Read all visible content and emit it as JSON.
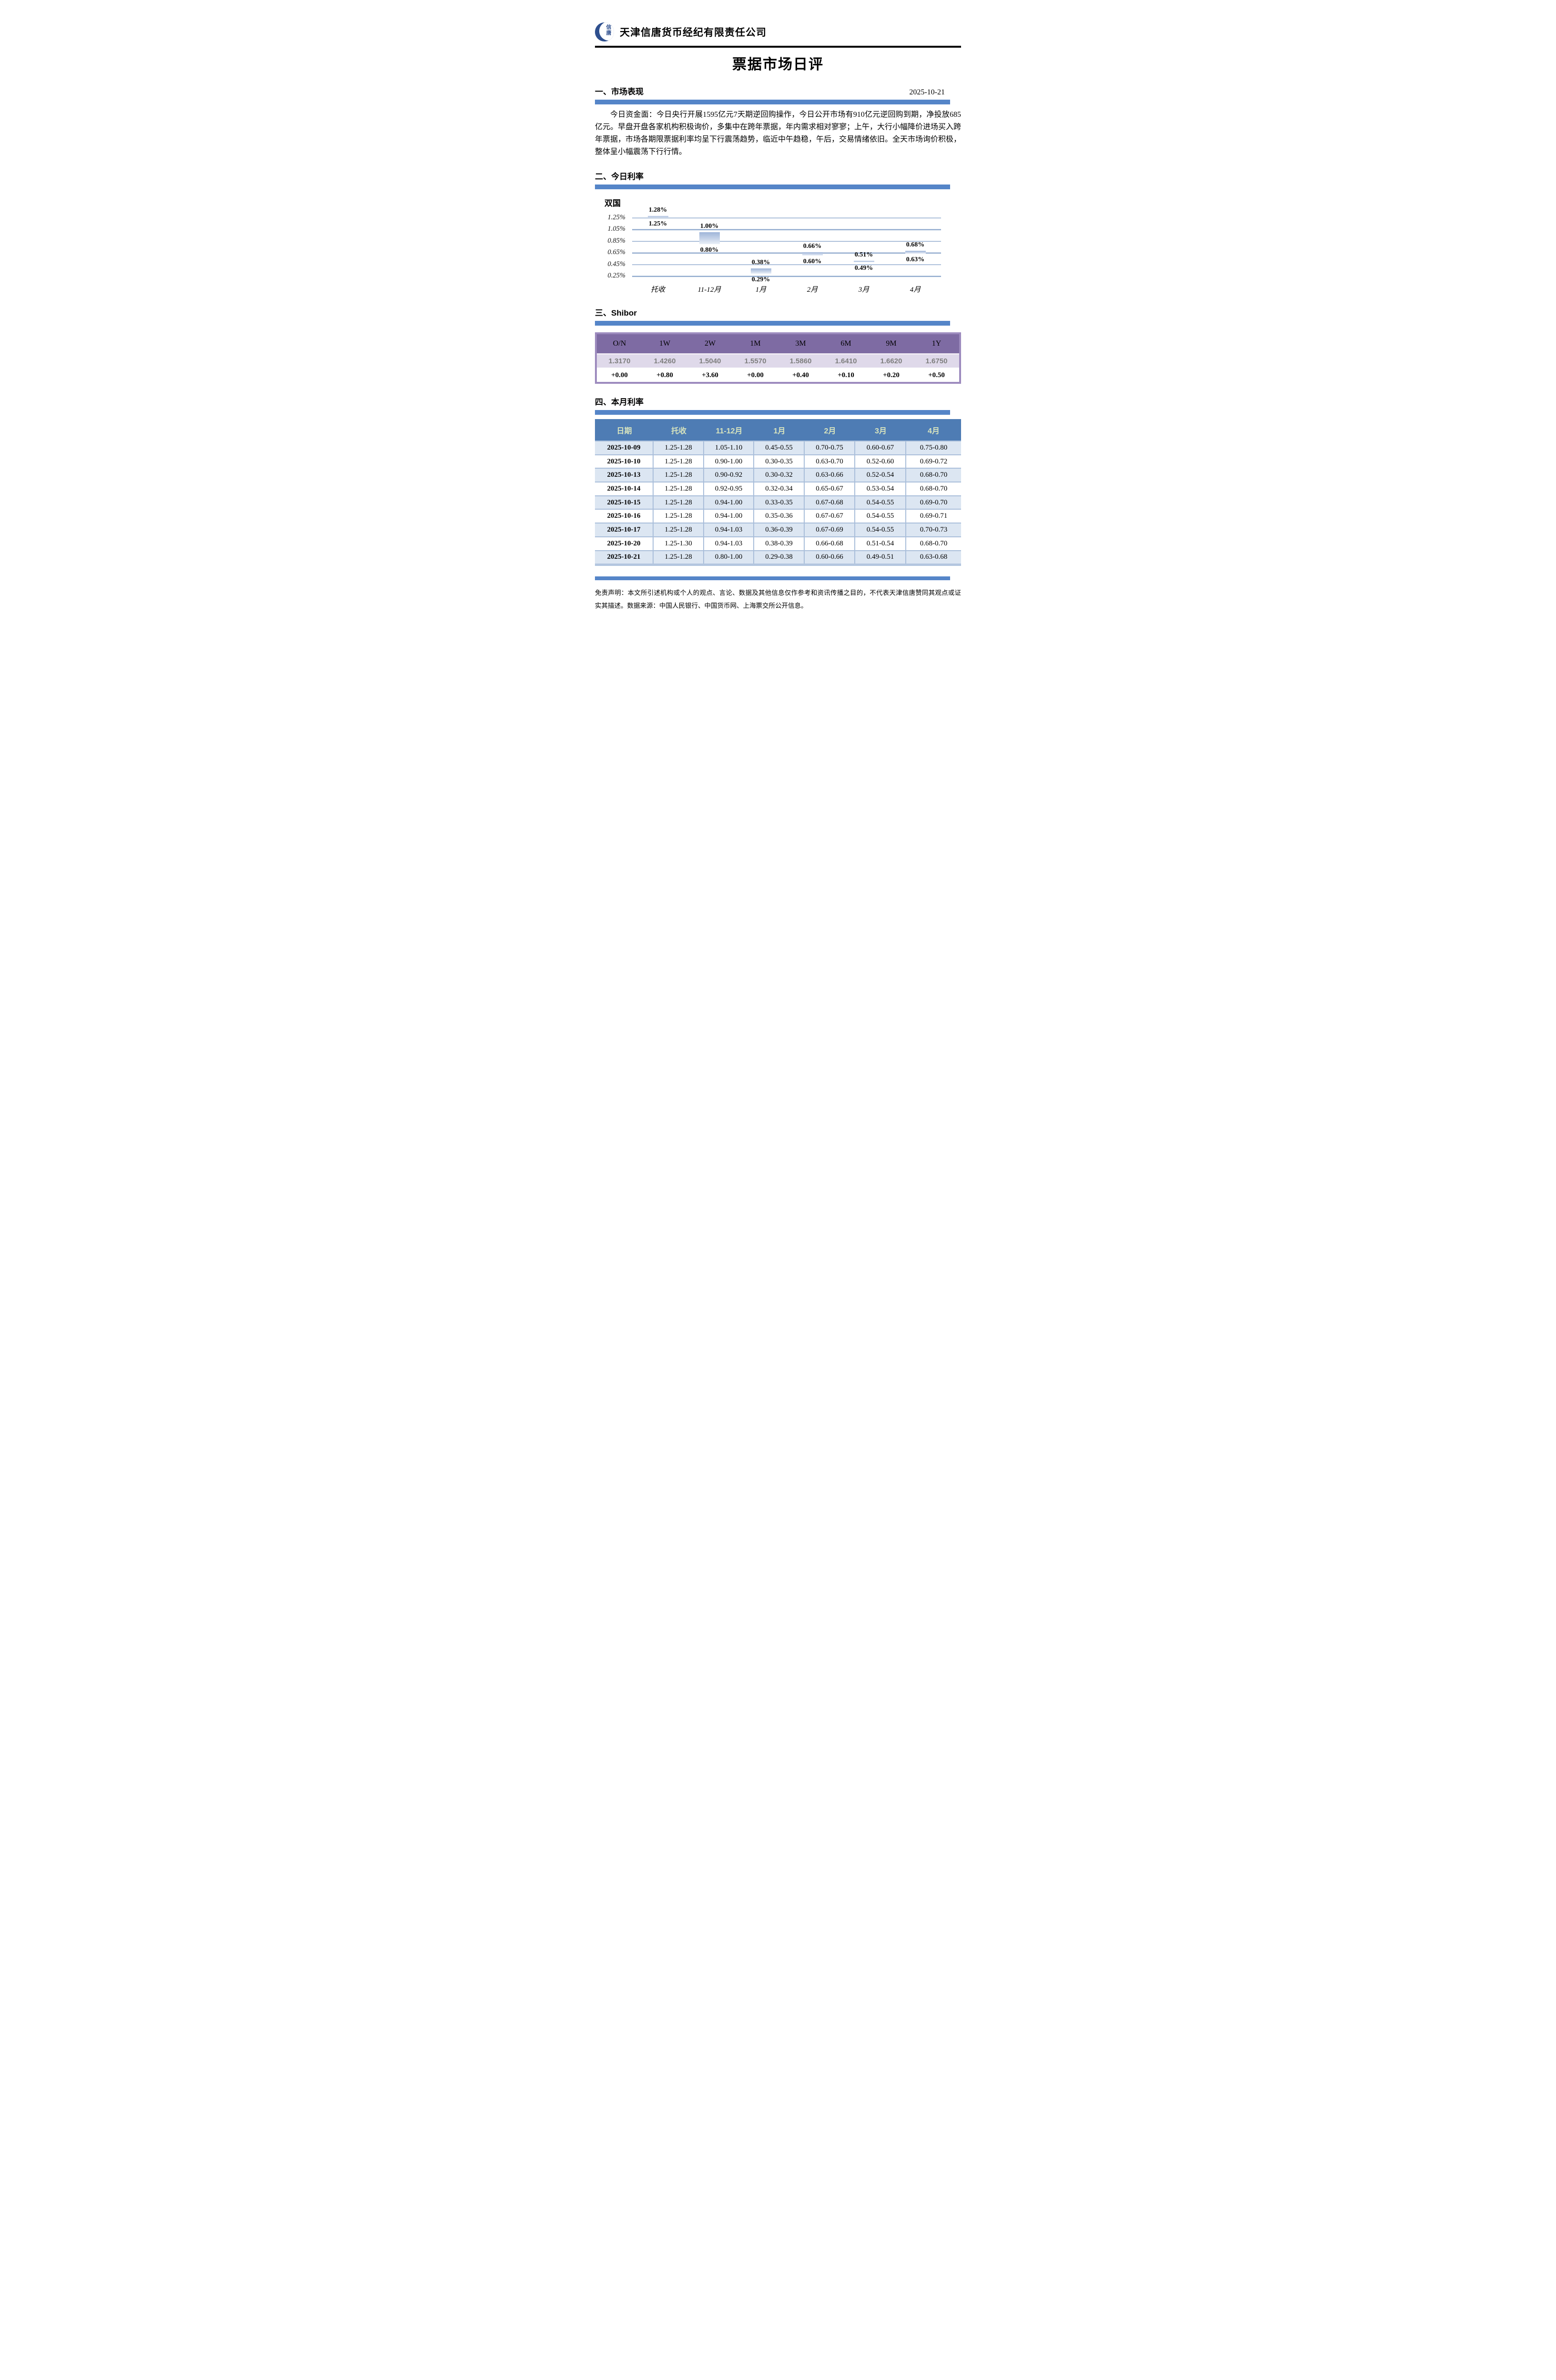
{
  "header": {
    "company": "天津信唐货币经纪有限责任公司",
    "logo_text": "信唐",
    "title": "票据市场日评"
  },
  "sections": {
    "market": {
      "heading": "一、市场表现",
      "date": "2025-10-21",
      "paragraph": "今日资金面：今日央行开展1595亿元7天期逆回购操作，今日公开市场有910亿元逆回购到期，净投放685亿元。早盘开盘各家机构积极询价，多集中在跨年票据，年内需求相对寥寥；上午，大行小幅降价进场买入跨年票据，市场各期限票据利率均呈下行震荡趋势，临近中午趋稳，午后，交易情绪依旧。全天市场询价积极，整体呈小幅震荡下行行情。"
    },
    "today_rates": {
      "heading": "二、今日利率"
    },
    "shibor": {
      "heading": "三、Shibor"
    },
    "monthly": {
      "heading": "四、本月利率"
    }
  },
  "chart_data": {
    "type": "bar",
    "subtype": "floating-range-bars",
    "series_label": "双国",
    "categories": [
      "托收",
      "11-12月",
      "1月",
      "2月",
      "3月",
      "4月"
    ],
    "ranges": [
      [
        1.25,
        1.28
      ],
      [
        0.8,
        1.0
      ],
      [
        0.29,
        0.38
      ],
      [
        0.6,
        0.66
      ],
      [
        0.49,
        0.51
      ],
      [
        0.63,
        0.68
      ]
    ],
    "labels_high": [
      "1.28%",
      "1.00%",
      "0.38%",
      "0.66%",
      "0.51%",
      "0.68%"
    ],
    "labels_low": [
      "1.25%",
      "0.80%",
      "0.29%",
      "0.60%",
      "0.49%",
      "0.63%"
    ],
    "y_ticks": [
      "1.25%",
      "1.05%",
      "0.85%",
      "0.65%",
      "0.45%",
      "0.25%"
    ],
    "ylim": [
      0.25,
      1.25
    ],
    "grid": true,
    "legend_position": "none",
    "xlabel": "",
    "ylabel": ""
  },
  "shibor_table": {
    "tenors": [
      "O/N",
      "1W",
      "2W",
      "1M",
      "3M",
      "6M",
      "9M",
      "1Y"
    ],
    "rates": [
      "1.3170",
      "1.4260",
      "1.5040",
      "1.5570",
      "1.5860",
      "1.6410",
      "1.6620",
      "1.6750"
    ],
    "changes": [
      "+0.00",
      "+0.80",
      "+3.60",
      "+0.00",
      "+0.40",
      "+0.10",
      "+0.20",
      "+0.50"
    ]
  },
  "monthly_table": {
    "headers": [
      "日期",
      "托收",
      "11-12月",
      "1月",
      "2月",
      "3月",
      "4月"
    ],
    "rows": [
      [
        "2025-10-09",
        "1.25-1.28",
        "1.05-1.10",
        "0.45-0.55",
        "0.70-0.75",
        "0.60-0.67",
        "0.75-0.80"
      ],
      [
        "2025-10-10",
        "1.25-1.28",
        "0.90-1.00",
        "0.30-0.35",
        "0.63-0.70",
        "0.52-0.60",
        "0.69-0.72"
      ],
      [
        "2025-10-13",
        "1.25-1.28",
        "0.90-0.92",
        "0.30-0.32",
        "0.63-0.66",
        "0.52-0.54",
        "0.68-0.70"
      ],
      [
        "2025-10-14",
        "1.25-1.28",
        "0.92-0.95",
        "0.32-0.34",
        "0.65-0.67",
        "0.53-0.54",
        "0.68-0.70"
      ],
      [
        "2025-10-15",
        "1.25-1.28",
        "0.94-1.00",
        "0.33-0.35",
        "0.67-0.68",
        "0.54-0.55",
        "0.69-0.70"
      ],
      [
        "2025-10-16",
        "1.25-1.28",
        "0.94-1.00",
        "0.35-0.36",
        "0.67-0.67",
        "0.54-0.55",
        "0.69-0.71"
      ],
      [
        "2025-10-17",
        "1.25-1.28",
        "0.94-1.03",
        "0.36-0.39",
        "0.67-0.69",
        "0.54-0.55",
        "0.70-0.73"
      ],
      [
        "2025-10-20",
        "1.25-1.30",
        "0.94-1.03",
        "0.38-0.39",
        "0.66-0.68",
        "0.51-0.54",
        "0.68-0.70"
      ],
      [
        "2025-10-21",
        "1.25-1.28",
        "0.80-1.00",
        "0.29-0.38",
        "0.60-0.66",
        "0.49-0.51",
        "0.63-0.68"
      ]
    ]
  },
  "disclaimer": "免责声明：本文所引述机构或个人的观点、言论、数据及其他信息仅作参考和资讯传播之目的，不代表天津信唐赞同其观点或证实其描述。数据来源：中国人民银行、中国货币网、上海票交所公开信息。",
  "colors": {
    "accent_bar": "#5585C8",
    "monthly_header_bg": "#4E7CB4",
    "monthly_header_text": "#D8E4BE",
    "row_stripe": "#DCE6F2",
    "row_line": "#A9BEDA",
    "shibor_header_bg": "#7E6BA3",
    "shibor_border": "#9D8BBE",
    "shibor_values_bg": "#DFD9EA",
    "shibor_values_text": "#7F7F7F",
    "chart_gridline": "#93ACCE",
    "chart_bar_top": "#9FB5D9",
    "chart_bar_bottom": "#EAF0F8",
    "logo_blue": "#2E4F8E"
  }
}
